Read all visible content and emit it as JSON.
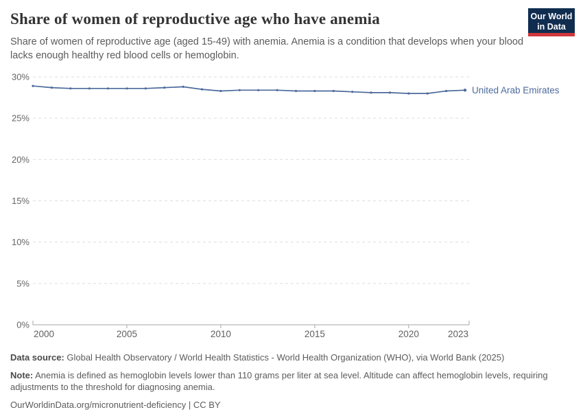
{
  "header": {
    "title": "Share of women of reproductive age who have anemia",
    "subtitle": "Share of women of reproductive age (aged 15-49) with anemia. Anemia is a condition that develops when your blood lacks enough healthy red blood cells or hemoglobin."
  },
  "logo": {
    "line1": "Our World",
    "line2": "in Data",
    "bg_color": "#102d50",
    "accent_color": "#d0373d"
  },
  "chart_data": {
    "type": "line",
    "title": "Share of women of reproductive age who have anemia",
    "x": [
      2000,
      2001,
      2002,
      2003,
      2004,
      2005,
      2006,
      2007,
      2008,
      2009,
      2010,
      2011,
      2012,
      2013,
      2014,
      2015,
      2016,
      2017,
      2018,
      2019,
      2020,
      2021,
      2022,
      2023
    ],
    "series": [
      {
        "name": "United Arab Emirates",
        "color": "#4c6a9c",
        "values": [
          28.9,
          28.7,
          28.6,
          28.6,
          28.6,
          28.6,
          28.6,
          28.7,
          28.8,
          28.5,
          28.3,
          28.4,
          28.4,
          28.4,
          28.3,
          28.3,
          28.3,
          28.2,
          28.1,
          28.1,
          28.0,
          28.0,
          28.3,
          28.4
        ]
      }
    ],
    "xlabel": "",
    "ylabel": "",
    "ylim": [
      0,
      30
    ],
    "yticks": [
      0,
      5,
      10,
      15,
      20,
      25,
      30
    ],
    "ytick_suffix": "%",
    "xticks": [
      2000,
      2005,
      2010,
      2015,
      2020,
      2023
    ],
    "grid": "horizontal-dashed",
    "grid_color": "#dddddd",
    "axis_color": "#a5a5a5",
    "tick_label_color": "#666666",
    "legend": "end-of-line-label"
  },
  "footer": {
    "data_source_label": "Data source:",
    "data_source_text": " Global Health Observatory / World Health Statistics - World Health Organization (WHO), via World Bank (2025)",
    "note_label": "Note:",
    "note_text": " Anemia is defined as hemoglobin levels lower than 110 grams per liter at sea level. Altitude can affect hemoglobin levels, requiring adjustments to the threshold for diagnosing anemia.",
    "url": "OurWorldinData.org/micronutrient-deficiency",
    "license": " | CC BY"
  }
}
